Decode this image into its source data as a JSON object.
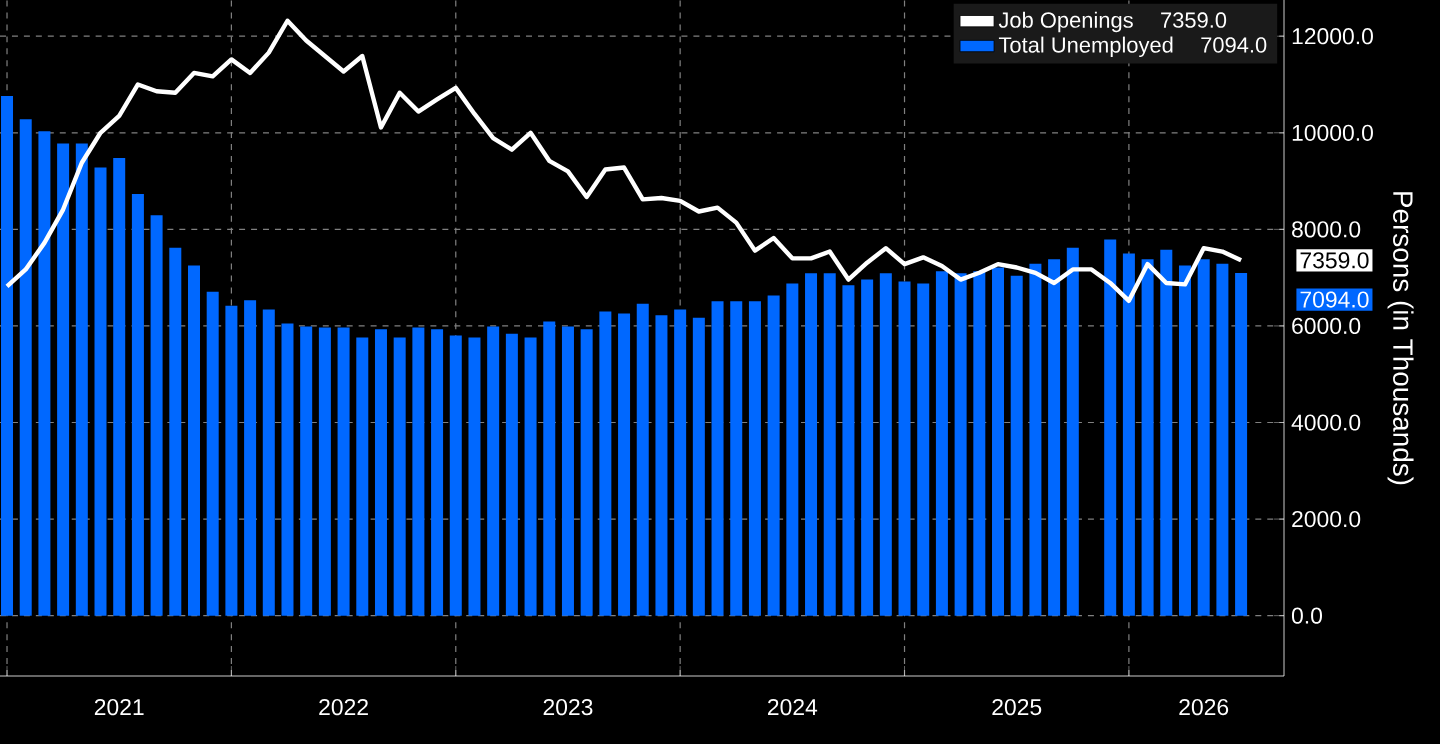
{
  "chart_data": {
    "type": "bar",
    "x": [
      "2021-01",
      "2021-02",
      "2021-03",
      "2021-04",
      "2021-05",
      "2021-06",
      "2021-07",
      "2021-08",
      "2021-09",
      "2021-10",
      "2021-11",
      "2021-12",
      "2022-01",
      "2022-02",
      "2022-03",
      "2022-04",
      "2022-05",
      "2022-06",
      "2022-07",
      "2022-08",
      "2022-09",
      "2022-10",
      "2022-11",
      "2022-12",
      "2023-01",
      "2023-02",
      "2023-03",
      "2023-04",
      "2023-05",
      "2023-06",
      "2023-07",
      "2023-08",
      "2023-09",
      "2023-10",
      "2023-11",
      "2023-12",
      "2024-01",
      "2024-02",
      "2024-03",
      "2024-04",
      "2024-05",
      "2024-06",
      "2024-07",
      "2024-08",
      "2024-09",
      "2024-10",
      "2024-11",
      "2024-12",
      "2025-01",
      "2025-02",
      "2025-03",
      "2025-04",
      "2025-05",
      "2025-06",
      "2025-07",
      "2025-08",
      "2025-09",
      "2025-10",
      "2025-11",
      "2025-12",
      "2026-01",
      "2026-02",
      "2026-03",
      "2026-04",
      "2026-05",
      "2026-06",
      "2026-07"
    ],
    "series": [
      {
        "name": "Job Openings",
        "type": "line",
        "color": "#ffffff",
        "values": [
          6820,
          7170,
          7720,
          8410,
          9380,
          10000,
          10350,
          11000,
          10860,
          10830,
          11240,
          11170,
          11520,
          11240,
          11660,
          12320,
          11910,
          11590,
          11270,
          11590,
          10110,
          10830,
          10440,
          10690,
          10930,
          10390,
          9890,
          9650,
          10000,
          9420,
          9200,
          8670,
          9240,
          9280,
          8620,
          8650,
          8590,
          8370,
          8450,
          8140,
          7560,
          7820,
          7400,
          7400,
          7540,
          6960,
          7310,
          7610,
          7280,
          7420,
          7240,
          6960,
          7100,
          7280,
          7210,
          7100,
          6890,
          7170,
          7170,
          6890,
          6520,
          7280,
          6890,
          6860,
          7610,
          7540,
          7359
        ]
      },
      {
        "name": "Total Unemployed",
        "color": "#0068ff",
        "values": [
          10760,
          10280,
          10030,
          9780,
          9780,
          9280,
          9480,
          8730,
          8290,
          7620,
          7250,
          6710,
          6420,
          6530,
          6340,
          6050,
          5990,
          5970,
          5970,
          5760,
          5930,
          5760,
          5970,
          5930,
          5800,
          5760,
          5990,
          5840,
          5760,
          6090,
          5990,
          5930,
          6300,
          6260,
          6460,
          6220,
          6340,
          6170,
          6510,
          6510,
          6510,
          6630,
          6880,
          7090,
          7090,
          6840,
          6960,
          7090,
          6920,
          6880,
          7130,
          7090,
          7130,
          7210,
          7040,
          7290,
          7380,
          7620,
          null,
          7790,
          7500,
          7380,
          7580,
          7250,
          7380,
          7290,
          7094
        ]
      }
    ],
    "ylabel": "Persons (in Thousands)",
    "xlim": [
      "2020-12-20",
      "2026-09-10"
    ],
    "xticks": [
      {
        "value": "2021-01-01",
        "label": null
      },
      {
        "value": "2021-07-01",
        "label": "2021"
      },
      {
        "value": "2022-01-01",
        "label": null
      },
      {
        "value": "2022-07-01",
        "label": "2022"
      },
      {
        "value": "2023-01-01",
        "label": null
      },
      {
        "value": "2023-07-01",
        "label": "2023"
      },
      {
        "value": "2024-01-01",
        "label": null
      },
      {
        "value": "2024-07-01",
        "label": "2024"
      },
      {
        "value": "2025-01-01",
        "label": null
      },
      {
        "value": "2025-07-01",
        "label": "2025"
      },
      {
        "value": "2026-01-01",
        "label": null
      },
      {
        "value": "2026-05-01",
        "label": "2026"
      }
    ],
    "ylim": [
      -1250,
      12750
    ],
    "yticks": [
      {
        "value": 0,
        "label": "0.0"
      },
      {
        "value": 2000,
        "label": "2000.0"
      },
      {
        "value": 4000,
        "label": "4000.0"
      },
      {
        "value": 6000,
        "label": "6000.0"
      },
      {
        "value": 8000,
        "label": "8000.0"
      },
      {
        "value": 10000,
        "label": "10000.0"
      },
      {
        "value": 12000,
        "label": "12000.0"
      }
    ],
    "annotations": [
      "7359.0",
      "7094.0"
    ],
    "grid": true,
    "legend": "top right",
    "marker": "none",
    "line_style": "solid"
  }
}
